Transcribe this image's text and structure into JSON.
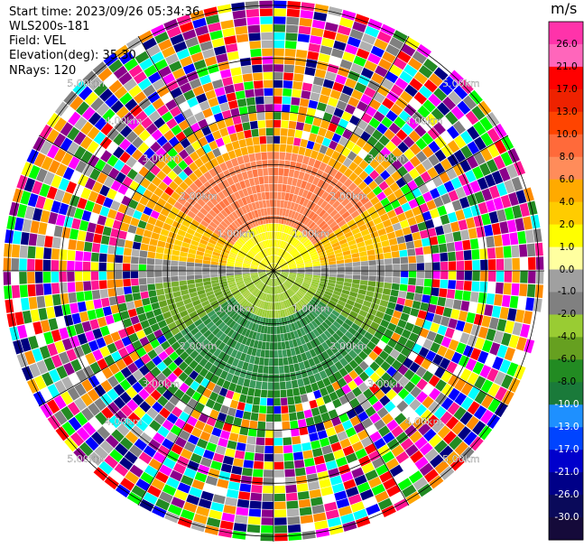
{
  "header": {
    "start_time": "Start time: 2023/09/26 05:34:36",
    "instrument": "WLS200s-181",
    "field": "Field: VEL",
    "elevation": "Elevation(deg): 35.30",
    "nrays": "NRays: 120"
  },
  "chart_data": {
    "type": "heatmap",
    "projection": "polar-ppi",
    "field": "VEL",
    "units": "m/s",
    "nrays": 120,
    "range_ring_labels": [
      "1.00km",
      "2.00km",
      "3.00km",
      "4.00km",
      "5.00km"
    ],
    "range_rings_km": [
      1,
      2,
      3,
      4,
      5
    ],
    "max_range_km": 5.1,
    "colorbar": {
      "title": "m/s",
      "tick_labels": [
        "26.0",
        "21.0",
        "17.0",
        "13.0",
        "10.0",
        "8.0",
        "6.0",
        "4.0",
        "2.0",
        "1.0",
        "0.0",
        "-1.0",
        "-2.0",
        "-4.0",
        "-6.0",
        "-8.0",
        "-10.0",
        "-13.0",
        "-17.0",
        "-21.0",
        "-26.0",
        "-30.0"
      ],
      "colors": [
        "#ff33aa",
        "#ff66bb",
        "#ff0000",
        "#ee2200",
        "#ff4400",
        "#ff6a3a",
        "#ff8c5a",
        "#ffaa00",
        "#ffcc00",
        "#ffff00",
        "#ffffa0",
        "#a0a0a0",
        "#808080",
        "#99cc33",
        "#66a020",
        "#228b22",
        "#1a7a3a",
        "#1e90ff",
        "#0044ff",
        "#0000cc",
        "#000088",
        "#0a0a5a",
        "#150a3a"
      ]
    },
    "mean_radial_velocity_pattern": "receding (positive, orange/red) to north, approaching (negative, green) to south, noisy beyond ~2.5km",
    "noise_palette": [
      "#ff1493",
      "#ff00ff",
      "#ffff00",
      "#ff8c00",
      "#0000ff",
      "#00ffff",
      "#00ff00",
      "#ff0000",
      "#8b008b",
      "#808080",
      "#000080",
      "#ffffff",
      "#228b22",
      "#ffa500",
      "#b0b0b0"
    ]
  }
}
